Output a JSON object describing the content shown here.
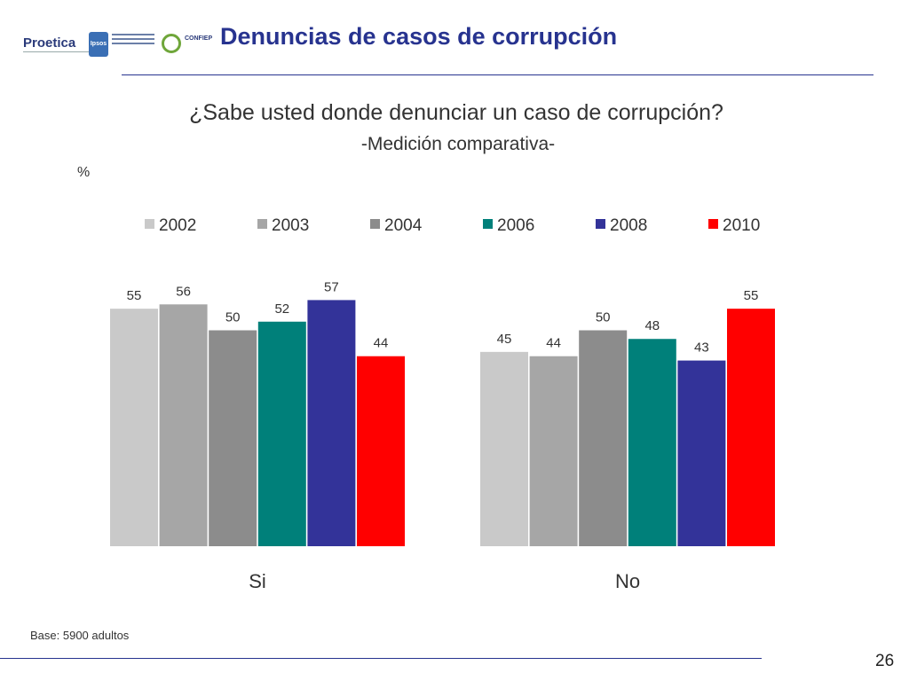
{
  "header": {
    "title": "Denuncias de casos de corrupción",
    "logos": {
      "proetica": "Proetica",
      "ipsos": "Ipsos",
      "confiep": "CONFIEP"
    }
  },
  "chart_data": {
    "type": "bar",
    "title": "¿Sabe usted donde denunciar un caso de corrupción?",
    "subtitle": "-Medición comparativa-",
    "unit": "%",
    "categories": [
      "Si",
      "No"
    ],
    "series": [
      {
        "name": "2002",
        "color": "#c9c9c9",
        "values": [
          55,
          45
        ]
      },
      {
        "name": "2003",
        "color": "#a6a6a6",
        "values": [
          56,
          44
        ]
      },
      {
        "name": "2004",
        "color": "#8c8c8c",
        "values": [
          50,
          50
        ]
      },
      {
        "name": "2006",
        "color": "#00807a",
        "values": [
          52,
          48
        ]
      },
      {
        "name": "2008",
        "color": "#333399",
        "values": [
          57,
          43
        ]
      },
      {
        "name": "2010",
        "color": "#ff0000",
        "values": [
          44,
          55
        ]
      }
    ],
    "ylim": [
      0,
      100
    ],
    "grid": false,
    "legend": "top"
  },
  "footer": {
    "base_note": "Base: 5900 adultos",
    "page_number": "26"
  }
}
